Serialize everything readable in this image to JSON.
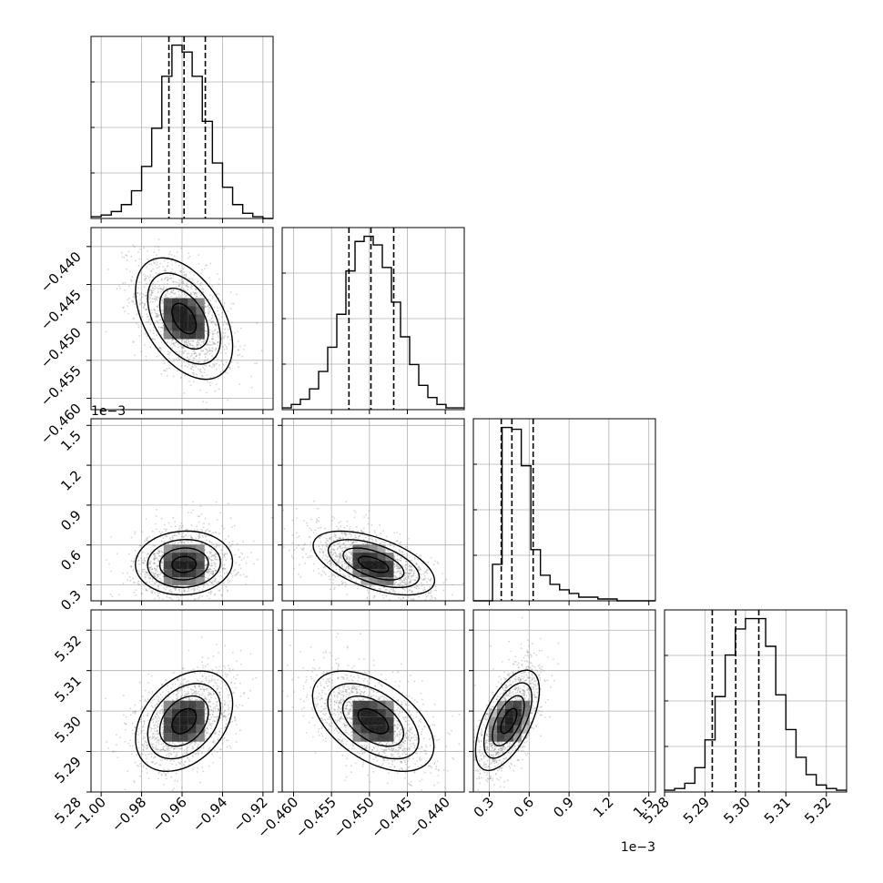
{
  "chart_data": {
    "type": "corner",
    "grid": true,
    "parameters": [
      {
        "index": 0,
        "range": [
          -1.005,
          -0.915
        ],
        "ticks": [
          -1.0,
          -0.98,
          -0.96,
          -0.94,
          -0.92
        ],
        "tick_labels": [
          "−1.00",
          "−0.98",
          "−0.96",
          "−0.94",
          "−0.92"
        ],
        "quantiles": [
          -0.9665,
          -0.959,
          -0.9485
        ],
        "offset_text": ""
      },
      {
        "index": 1,
        "range": [
          -0.4615,
          -0.4375
        ],
        "ticks": [
          -0.46,
          -0.455,
          -0.45,
          -0.445,
          -0.44
        ],
        "tick_labels": [
          "−0.460",
          "−0.455",
          "−0.450",
          "−0.445",
          "−0.440"
        ],
        "quantiles": [
          -0.4527,
          -0.4498,
          -0.4468
        ],
        "offset_text": ""
      },
      {
        "index": 2,
        "range": [
          0.18,
          1.55
        ],
        "ticks": [
          0.3,
          0.6,
          0.9,
          1.2,
          1.5
        ],
        "tick_labels": [
          "0.3",
          "0.6",
          "0.9",
          "1.2",
          "1.5"
        ],
        "quantiles": [
          0.39,
          0.47,
          0.63
        ],
        "offset_text": "1e−3"
      },
      {
        "index": 3,
        "range": [
          5.28,
          5.325
        ],
        "ticks": [
          5.28,
          5.29,
          5.3,
          5.31,
          5.32
        ],
        "tick_labels": [
          "5.28",
          "5.29",
          "5.30",
          "5.31",
          "5.32"
        ],
        "quantiles": [
          5.2918,
          5.2976,
          5.3033
        ],
        "offset_text": ""
      }
    ],
    "histograms": [
      {
        "param": 0,
        "counts": [
          1,
          2,
          4,
          8,
          16,
          30,
          52,
          82,
          100,
          96,
          82,
          56,
          32,
          18,
          8,
          3,
          1,
          0
        ]
      },
      {
        "param": 1,
        "counts": [
          1,
          3,
          6,
          12,
          22,
          36,
          55,
          80,
          97,
          100,
          95,
          82,
          62,
          42,
          26,
          14,
          7,
          3,
          1,
          1
        ]
      },
      {
        "param": 2,
        "counts": [
          0,
          0,
          20,
          95,
          94,
          74,
          28,
          14,
          9,
          6,
          4,
          2,
          2,
          1,
          1,
          0,
          0,
          0,
          0
        ]
      },
      {
        "param": 3,
        "counts": [
          1,
          2,
          5,
          14,
          30,
          55,
          79,
          94,
          100,
          100,
          84,
          56,
          36,
          20,
          10,
          4,
          2,
          1
        ]
      }
    ],
    "pairs": [
      {
        "x_param": 0,
        "y_param": 1,
        "center": [
          -0.959,
          -0.4495
        ],
        "sigma": [
          0.012,
          0.004
        ],
        "rho": -0.45,
        "skew": 0
      },
      {
        "x_param": 0,
        "y_param": 2,
        "center": [
          -0.959,
          0.45
        ],
        "sigma": [
          0.012,
          0.12
        ],
        "rho": 0.05,
        "skew": 0.18
      },
      {
        "x_param": 1,
        "y_param": 2,
        "center": [
          -0.4495,
          0.45
        ],
        "sigma": [
          0.004,
          0.12
        ],
        "rho": -0.55,
        "skew": 0.18
      },
      {
        "x_param": 0,
        "y_param": 3,
        "center": [
          -0.959,
          5.2975
        ],
        "sigma": [
          0.012,
          0.0062
        ],
        "rho": 0.35,
        "skew": 0
      },
      {
        "x_param": 1,
        "y_param": 3,
        "center": [
          -0.4495,
          5.2975
        ],
        "sigma": [
          0.004,
          0.0062
        ],
        "rho": -0.5,
        "skew": 0
      },
      {
        "x_param": 2,
        "y_param": 3,
        "center": [
          0.45,
          5.2975
        ],
        "sigma": [
          0.12,
          0.0062
        ],
        "rho": 0.6,
        "skew": 0.18
      }
    ]
  }
}
